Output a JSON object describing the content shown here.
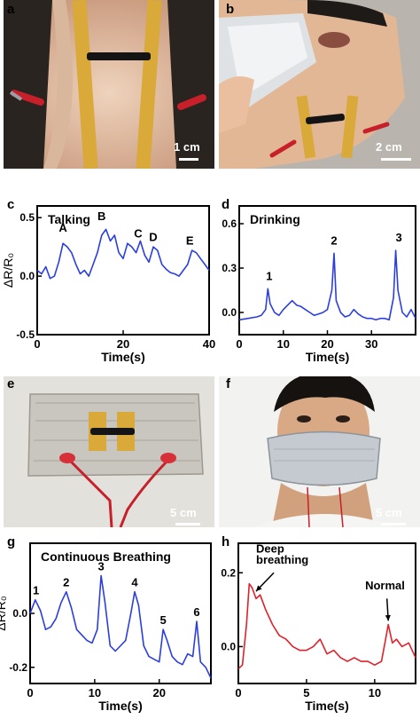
{
  "panels": {
    "a": {
      "label": "a",
      "scale": "1 cm"
    },
    "b": {
      "label": "b",
      "scale": "2 cm"
    },
    "e": {
      "label": "e",
      "scale": "5 cm"
    },
    "f": {
      "label": "f",
      "scale": "5 cm"
    }
  },
  "colors": {
    "blue": "#2b3ee0",
    "red": "#e0202a",
    "tape": "#d9a93a",
    "skin": "#e8c3a6"
  },
  "chart_data": [
    {
      "id": "c",
      "panel_label": "c",
      "type": "line",
      "title": "Talking",
      "xlabel": "Time(s)",
      "ylabel": "ΔR/R₀",
      "color": "#2b3ee0",
      "xlim": [
        0,
        40
      ],
      "ylim": [
        -0.5,
        0.6
      ],
      "xticks": [
        "0",
        "20",
        "40"
      ],
      "xtick_values": [
        0,
        20,
        40
      ],
      "yticks": [
        "-0.5",
        "0.0",
        "0.5"
      ],
      "ytick_values": [
        -0.5,
        0.0,
        0.5
      ],
      "x": [
        0,
        1,
        2,
        3,
        4,
        5,
        6,
        7,
        8,
        9,
        10,
        11,
        12,
        13,
        14,
        15,
        16,
        17,
        18,
        19,
        20,
        21,
        22,
        23,
        24,
        25,
        26,
        27,
        28,
        29,
        30,
        31,
        32,
        33,
        34,
        35,
        36,
        37,
        38,
        39,
        40
      ],
      "y": [
        0.05,
        0.02,
        0.08,
        -0.02,
        0.0,
        0.12,
        0.28,
        0.25,
        0.2,
        0.1,
        0.02,
        0.05,
        0.0,
        0.1,
        0.2,
        0.35,
        0.4,
        0.3,
        0.35,
        0.2,
        0.15,
        0.28,
        0.25,
        0.2,
        0.3,
        0.18,
        0.12,
        0.25,
        0.22,
        0.1,
        0.06,
        0.03,
        0.02,
        0.0,
        0.05,
        0.1,
        0.22,
        0.2,
        0.15,
        0.1,
        0.05
      ],
      "annotations": [
        {
          "text": "A",
          "x": 6,
          "y": 0.38
        },
        {
          "text": "B",
          "x": 15,
          "y": 0.48
        },
        {
          "text": "C",
          "x": 23.5,
          "y": 0.33
        },
        {
          "text": "D",
          "x": 27,
          "y": 0.3
        },
        {
          "text": "E",
          "x": 35.5,
          "y": 0.27
        }
      ]
    },
    {
      "id": "d",
      "panel_label": "d",
      "type": "line",
      "title": "Drinking",
      "xlabel": "Time(s)",
      "ylabel": "ΔR/R₀",
      "color": "#2b3ee0",
      "xlim": [
        0,
        40
      ],
      "ylim": [
        -0.15,
        0.72
      ],
      "xticks": [
        "0",
        "10",
        "20",
        "30"
      ],
      "xtick_values": [
        0,
        10,
        20,
        30
      ],
      "yticks": [
        "0.0",
        "0.3",
        "0.6"
      ],
      "ytick_values": [
        0.0,
        0.3,
        0.6
      ],
      "x": [
        0,
        2,
        4,
        5,
        6,
        6.5,
        7,
        8,
        9,
        10,
        11,
        12,
        13,
        14,
        15,
        16,
        17,
        18,
        19,
        20,
        21,
        21.5,
        22,
        23,
        24,
        25,
        26,
        27,
        28,
        29,
        30,
        31,
        32,
        33,
        34,
        35,
        35.5,
        36,
        37,
        38,
        39,
        40
      ],
      "y": [
        -0.05,
        -0.04,
        -0.03,
        -0.02,
        0.02,
        0.16,
        0.06,
        0.0,
        -0.02,
        0.02,
        0.05,
        0.08,
        0.05,
        0.04,
        0.02,
        0.0,
        -0.02,
        -0.01,
        0.0,
        0.02,
        0.15,
        0.4,
        0.08,
        0.0,
        -0.03,
        -0.02,
        0.02,
        -0.01,
        -0.03,
        -0.04,
        -0.04,
        -0.05,
        -0.04,
        -0.04,
        -0.05,
        0.1,
        0.42,
        0.15,
        0.0,
        -0.03,
        0.02,
        -0.04
      ],
      "annotations": [
        {
          "text": "1",
          "x": 6.8,
          "y": 0.22
        },
        {
          "text": "2",
          "x": 21.5,
          "y": 0.46
        },
        {
          "text": "3",
          "x": 36.2,
          "y": 0.48
        }
      ]
    },
    {
      "id": "g",
      "panel_label": "g",
      "type": "line",
      "title": "Continuous Breathing",
      "xlabel": "Time(s)",
      "ylabel": "ΔR/R₀",
      "color": "#2b3ee0",
      "xlim": [
        0,
        28
      ],
      "ylim": [
        -0.26,
        0.26
      ],
      "xticks": [
        "0",
        "10",
        "20"
      ],
      "xtick_values": [
        0,
        10,
        20
      ],
      "yticks": [
        "0.0",
        "-0.2"
      ],
      "ytick_values": [
        0.0,
        -0.2
      ],
      "x": [
        0,
        0.8,
        1.6,
        2.4,
        3.2,
        4.0,
        4.8,
        5.6,
        6.4,
        7.2,
        8.0,
        8.8,
        9.6,
        10.4,
        11.0,
        11.6,
        12.4,
        13.2,
        14.0,
        14.8,
        15.6,
        16.2,
        16.8,
        17.6,
        18.4,
        19.2,
        20.0,
        20.6,
        21.2,
        22.0,
        22.8,
        23.6,
        24.4,
        25.2,
        25.8,
        26.4,
        27.2,
        28.0
      ],
      "y": [
        0.0,
        0.05,
        0.01,
        -0.06,
        -0.05,
        -0.02,
        0.04,
        0.08,
        0.02,
        -0.06,
        -0.08,
        -0.1,
        -0.11,
        -0.06,
        0.14,
        0.04,
        -0.12,
        -0.14,
        -0.12,
        -0.1,
        0.0,
        0.08,
        0.03,
        -0.12,
        -0.16,
        -0.17,
        -0.18,
        -0.06,
        -0.1,
        -0.16,
        -0.18,
        -0.19,
        -0.15,
        -0.16,
        -0.03,
        -0.18,
        -0.2,
        -0.24
      ],
      "annotations": [
        {
          "text": "1",
          "x": 0.9,
          "y": 0.07
        },
        {
          "text": "2",
          "x": 5.6,
          "y": 0.1
        },
        {
          "text": "3",
          "x": 11.0,
          "y": 0.16
        },
        {
          "text": "4",
          "x": 16.2,
          "y": 0.1
        },
        {
          "text": "5",
          "x": 20.6,
          "y": -0.04
        },
        {
          "text": "6",
          "x": 25.8,
          "y": -0.01
        }
      ]
    },
    {
      "id": "h",
      "panel_label": "h",
      "type": "line",
      "title": "",
      "xlabel": "Time(s)",
      "ylabel": "ΔR/R₀",
      "color": "#e0202a",
      "xlim": [
        0,
        13
      ],
      "ylim": [
        -0.1,
        0.28
      ],
      "xticks": [
        "0",
        "5",
        "10"
      ],
      "xtick_values": [
        0,
        5,
        10
      ],
      "yticks": [
        "0.2",
        "0.0"
      ],
      "ytick_values": [
        0.2,
        0.0
      ],
      "x": [
        0,
        0.3,
        0.6,
        0.8,
        1.0,
        1.3,
        1.6,
        2.0,
        2.5,
        3.0,
        3.5,
        4.0,
        4.5,
        5.0,
        5.5,
        6.0,
        6.5,
        7.0,
        7.5,
        8.0,
        8.5,
        9.0,
        9.5,
        10.0,
        10.5,
        10.8,
        11.0,
        11.3,
        11.6,
        12.0,
        12.5,
        13.0
      ],
      "y": [
        -0.06,
        -0.05,
        0.06,
        0.17,
        0.16,
        0.13,
        0.14,
        0.1,
        0.06,
        0.03,
        0.02,
        0.0,
        -0.01,
        -0.01,
        0.0,
        0.02,
        -0.02,
        -0.01,
        -0.03,
        -0.04,
        -0.03,
        -0.04,
        -0.04,
        -0.05,
        -0.04,
        0.02,
        0.06,
        0.01,
        0.02,
        0.0,
        0.01,
        -0.03
      ],
      "annotations": [
        {
          "text": "Deep",
          "x": 1.3,
          "y": 0.255
        },
        {
          "text": "breathing",
          "x": 1.3,
          "y": 0.225
        },
        {
          "text": "Normal",
          "x": 9.3,
          "y": 0.155
        }
      ],
      "arrows": [
        {
          "from": [
            2.6,
            0.2
          ],
          "to": [
            1.3,
            0.15
          ]
        },
        {
          "from": [
            10.9,
            0.13
          ],
          "to": [
            11.0,
            0.07
          ]
        }
      ]
    }
  ]
}
